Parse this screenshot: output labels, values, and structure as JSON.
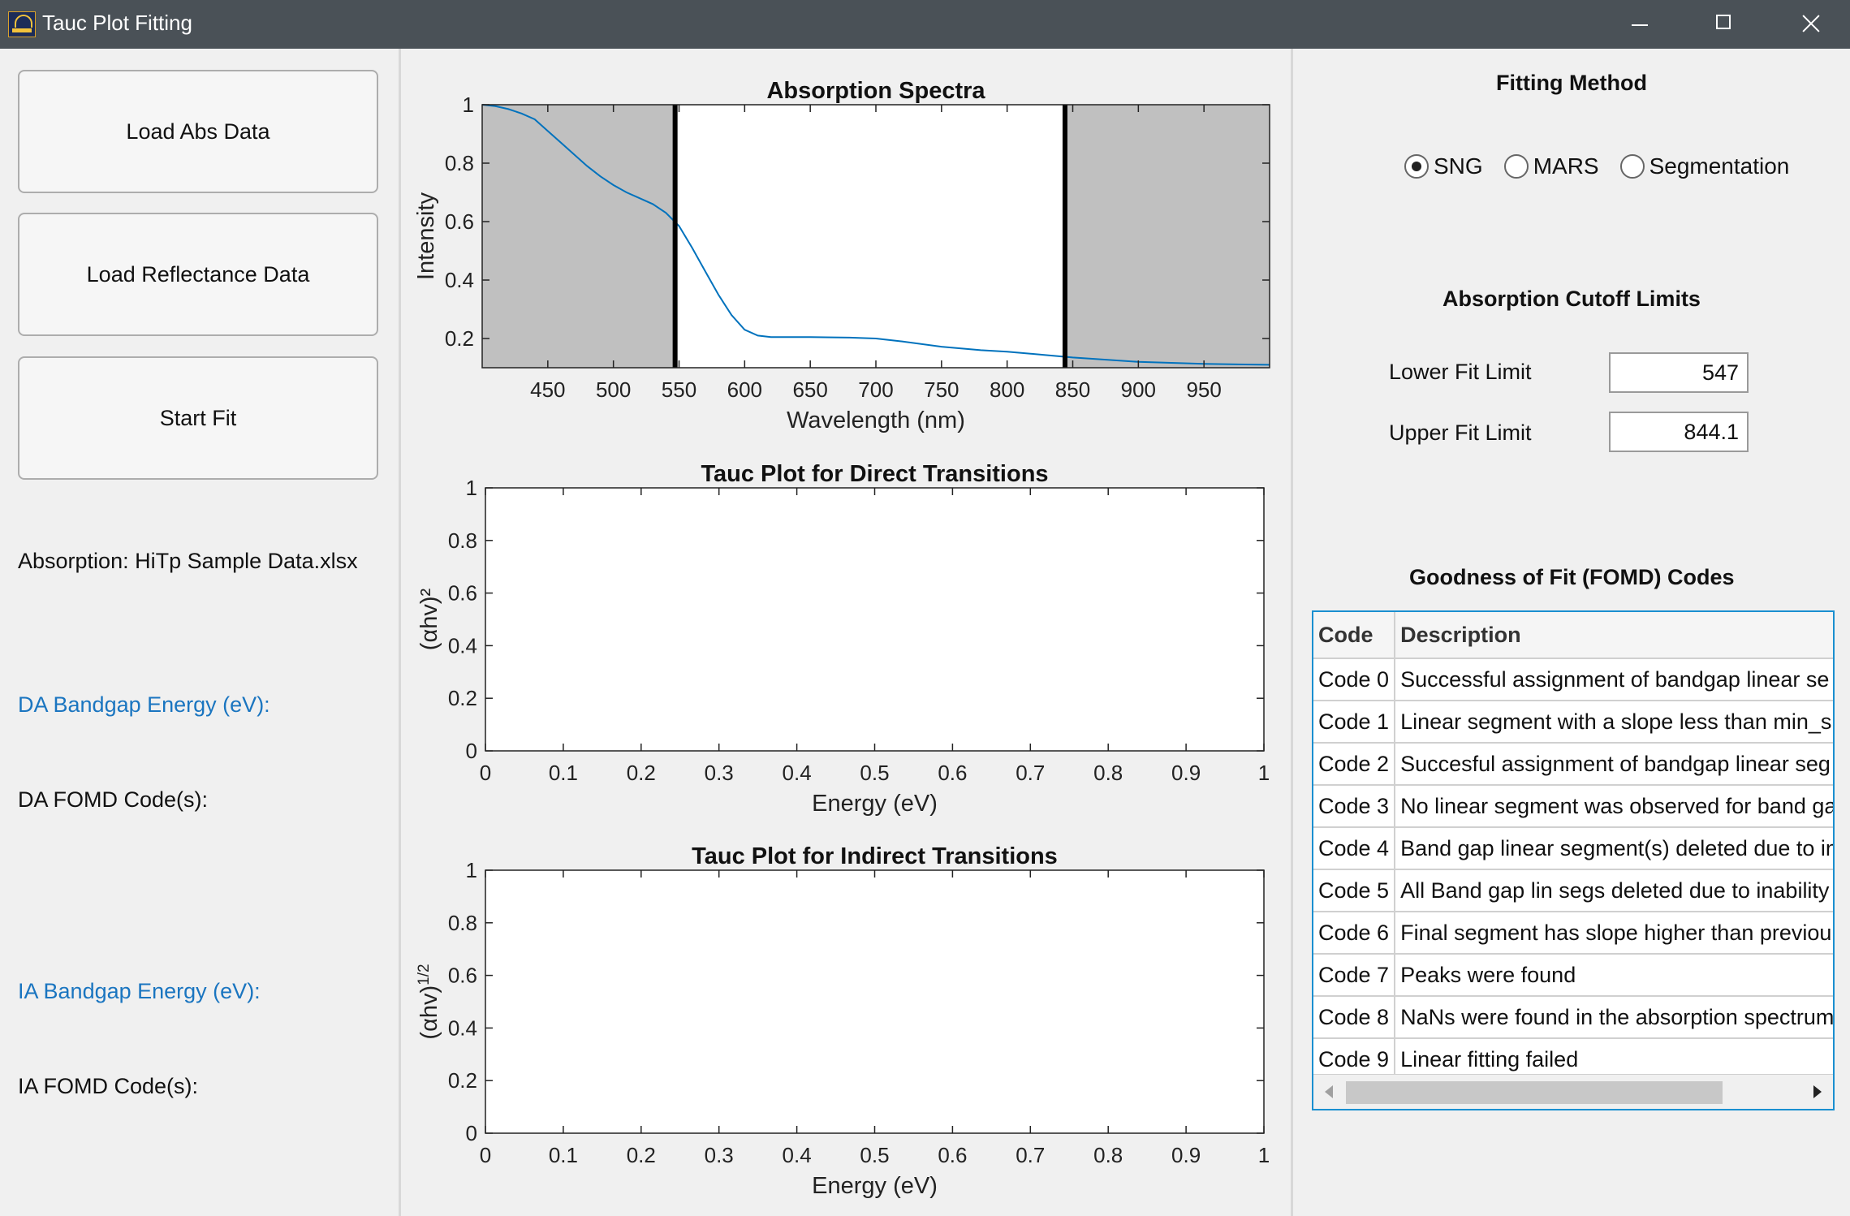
{
  "window": {
    "title": "Tauc Plot Fitting"
  },
  "buttons": {
    "load_abs": "Load Abs Data",
    "load_reflectance": "Load Reflectance Data",
    "start_fit": "Start Fit"
  },
  "left_panel": {
    "absorption_file": "Absorption: HiTp Sample Data.xlsx",
    "da_bandgap_label": "DA Bandgap Energy (eV):",
    "da_fomd_label": "DA FOMD Code(s):",
    "ia_bandgap_label": "IA Bandgap Energy (eV):",
    "ia_fomd_label": "IA FOMD Code(s):"
  },
  "fitting_method": {
    "title": "Fitting Method",
    "options": [
      "SNG",
      "MARS",
      "Segmentation"
    ],
    "selected": "SNG"
  },
  "cutoff": {
    "title": "Absorption Cutoff Limits",
    "lower_label": "Lower Fit Limit",
    "lower_value": "547",
    "upper_label": "Upper Fit Limit",
    "upper_value": "844.1"
  },
  "fomd_table": {
    "title": "Goodness of Fit (FOMD) Codes",
    "columns": [
      "Code",
      "Description"
    ],
    "rows": [
      [
        "Code 0",
        "Successful assignment of bandgap linear se"
      ],
      [
        "Code 1",
        "Linear segment with a slope less than min_s"
      ],
      [
        "Code 2",
        "Succesful assignment of bandgap linear seg"
      ],
      [
        "Code 3",
        "No linear segment was observed for band ga"
      ],
      [
        "Code 4",
        "Band gap linear segment(s) deleted due to in"
      ],
      [
        "Code 5",
        "All Band gap lin segs deleted due to inability"
      ],
      [
        "Code 6",
        "Final segment has slope higher than previou"
      ],
      [
        "Code 7",
        "Peaks were found"
      ],
      [
        "Code 8",
        "NaNs were found in the absorption spectrum"
      ],
      [
        "Code 9",
        "Linear fitting failed"
      ]
    ]
  },
  "colors": {
    "curve": "#0072bd",
    "shade": "#c0c0c0",
    "link_blue": "#1a75c0"
  },
  "chart_data": [
    {
      "type": "line",
      "title": "Absorption Spectra",
      "xlabel": "Wavelength (nm)",
      "ylabel": "Intensity",
      "xlim": [
        400,
        1000
      ],
      "ylim": [
        0.1,
        1
      ],
      "xticks": [
        450,
        500,
        550,
        600,
        650,
        700,
        750,
        800,
        850,
        900,
        950
      ],
      "yticks": [
        0.2,
        0.4,
        0.6,
        0.8,
        1
      ],
      "cutoffs": [
        547,
        844.1
      ],
      "x": [
        400,
        410,
        420,
        430,
        440,
        450,
        460,
        470,
        480,
        490,
        500,
        510,
        520,
        530,
        540,
        550,
        560,
        570,
        580,
        590,
        600,
        610,
        620,
        650,
        680,
        700,
        720,
        750,
        780,
        800,
        830,
        850,
        880,
        900,
        950,
        1000
      ],
      "y": [
        1.0,
        0.995,
        0.985,
        0.97,
        0.95,
        0.91,
        0.87,
        0.83,
        0.79,
        0.755,
        0.725,
        0.7,
        0.68,
        0.66,
        0.63,
        0.585,
        0.51,
        0.43,
        0.35,
        0.28,
        0.23,
        0.21,
        0.205,
        0.205,
        0.203,
        0.2,
        0.19,
        0.172,
        0.16,
        0.155,
        0.143,
        0.135,
        0.126,
        0.12,
        0.113,
        0.11
      ]
    },
    {
      "type": "line",
      "title": "Tauc Plot for Direct Transitions",
      "xlabel": "Energy (eV)",
      "ylabel": "(αhv)²",
      "xlim": [
        0,
        1
      ],
      "ylim": [
        0,
        1
      ],
      "xticks": [
        0,
        0.1,
        0.2,
        0.3,
        0.4,
        0.5,
        0.6,
        0.7,
        0.8,
        0.9,
        1
      ],
      "yticks": [
        0,
        0.2,
        0.4,
        0.6,
        0.8,
        1
      ]
    },
    {
      "type": "line",
      "title": "Tauc Plot for Indirect Transitions",
      "xlabel": "Energy (eV)",
      "ylabel": "(αhv)^1/2",
      "xlim": [
        0,
        1
      ],
      "ylim": [
        0,
        1
      ],
      "xticks": [
        0,
        0.1,
        0.2,
        0.3,
        0.4,
        0.5,
        0.6,
        0.7,
        0.8,
        0.9,
        1
      ],
      "yticks": [
        0,
        0.2,
        0.4,
        0.6,
        0.8,
        1
      ]
    }
  ]
}
